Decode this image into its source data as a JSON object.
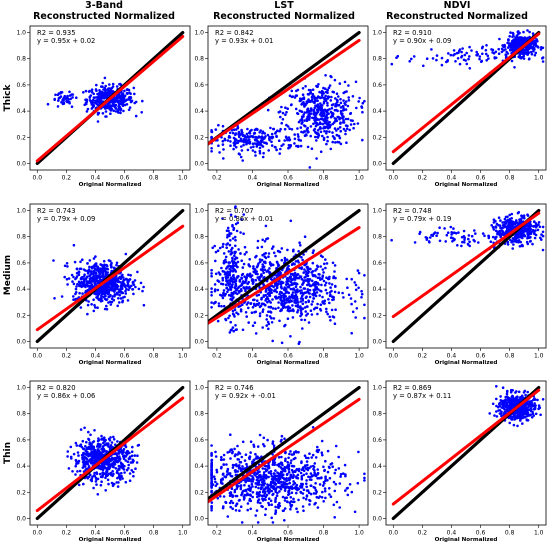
{
  "figure": {
    "col_titles": [
      {
        "line1": "3-Band",
        "line2": "Reconstructed Normalized"
      },
      {
        "line1": "LST",
        "line2": "Reconstructed Normalized"
      },
      {
        "line1": "NDVI",
        "line2": "Reconstructed Normalized"
      }
    ],
    "row_labels": [
      "Thick",
      "Medium",
      "Thin"
    ]
  },
  "colors": {
    "points": "#0000ff",
    "fit_line": "#ff0000",
    "identity_line": "#000000"
  },
  "chart_data": [
    {
      "type": "scatter",
      "row": "Thick",
      "col": "3-Band",
      "xlabel": "Original Normalized",
      "xlim": [
        -0.05,
        1.05
      ],
      "ylim": [
        -0.05,
        1.05
      ],
      "xticks": [
        0.0,
        0.2,
        0.4,
        0.6,
        0.8,
        1.0
      ],
      "yticks": [
        0.0,
        0.2,
        0.4,
        0.6,
        0.8,
        1.0
      ],
      "r2_text": "R2 = 0.935",
      "eq_text": "y = 0.95x + 0.02",
      "fit": {
        "slope": 0.95,
        "intercept": 0.02
      },
      "identity": true,
      "clouds": [
        {
          "cx": 0.5,
          "cy": 0.49,
          "sx": 0.08,
          "sy": 0.05,
          "n": 380
        },
        {
          "cx": 0.18,
          "cy": 0.48,
          "sx": 0.04,
          "sy": 0.03,
          "n": 40
        }
      ]
    },
    {
      "type": "scatter",
      "row": "Thick",
      "col": "LST",
      "xlabel": "Original Normalized",
      "xlim": [
        0.15,
        1.05
      ],
      "ylim": [
        -0.05,
        1.05
      ],
      "xticks": [
        0.2,
        0.4,
        0.6,
        0.8,
        1.0
      ],
      "yticks": [
        0.0,
        0.2,
        0.4,
        0.6,
        0.8,
        1.0
      ],
      "r2_text": "R2 = 0.842",
      "eq_text": "y = 0.93x + 0.01",
      "fit": {
        "slope": 0.93,
        "intercept": 0.01
      },
      "identity": true,
      "clouds": [
        {
          "cx": 0.78,
          "cy": 0.38,
          "sx": 0.1,
          "sy": 0.12,
          "n": 450
        },
        {
          "cx": 0.4,
          "cy": 0.18,
          "sx": 0.12,
          "sy": 0.05,
          "n": 220
        }
      ]
    },
    {
      "type": "scatter",
      "row": "Thick",
      "col": "NDVI",
      "xlabel": "Original Normalized",
      "xlim": [
        -0.05,
        1.05
      ],
      "ylim": [
        -0.05,
        1.05
      ],
      "xticks": [
        0.0,
        0.2,
        0.4,
        0.6,
        0.8,
        1.0
      ],
      "yticks": [
        0.0,
        0.2,
        0.4,
        0.6,
        0.8,
        1.0
      ],
      "r2_text": "R2 = 0.910",
      "eq_text": "y = 0.90x + 0.09",
      "fit": {
        "slope": 0.9,
        "intercept": 0.09
      },
      "identity": true,
      "clouds": [
        {
          "cx": 0.88,
          "cy": 0.9,
          "sx": 0.05,
          "sy": 0.04,
          "n": 380
        },
        {
          "cx": 0.5,
          "cy": 0.82,
          "sx": 0.2,
          "sy": 0.04,
          "n": 90
        }
      ]
    },
    {
      "type": "scatter",
      "row": "Medium",
      "col": "3-Band",
      "xlabel": "Original Normalized",
      "xlim": [
        -0.05,
        1.05
      ],
      "ylim": [
        -0.05,
        1.05
      ],
      "xticks": [
        0.0,
        0.2,
        0.4,
        0.6,
        0.8,
        1.0
      ],
      "yticks": [
        0.0,
        0.2,
        0.4,
        0.6,
        0.8,
        1.0
      ],
      "r2_text": "R2 = 0.743",
      "eq_text": "y = 0.79x + 0.09",
      "fit": {
        "slope": 0.79,
        "intercept": 0.09
      },
      "identity": true,
      "clouds": [
        {
          "cx": 0.45,
          "cy": 0.45,
          "sx": 0.1,
          "sy": 0.08,
          "n": 600
        }
      ]
    },
    {
      "type": "scatter",
      "row": "Medium",
      "col": "LST",
      "xlabel": "Original Normalized",
      "xlim": [
        0.15,
        1.05
      ],
      "ylim": [
        -0.05,
        1.05
      ],
      "xticks": [
        0.2,
        0.4,
        0.6,
        0.8,
        1.0
      ],
      "yticks": [
        0.0,
        0.2,
        0.4,
        0.6,
        0.8,
        1.0
      ],
      "r2_text": "R2 = 0.707",
      "eq_text": "y = 0.86x + 0.01",
      "fit": {
        "slope": 0.86,
        "intercept": 0.01
      },
      "identity": true,
      "clouds": [
        {
          "cx": 0.55,
          "cy": 0.42,
          "sx": 0.18,
          "sy": 0.14,
          "n": 900
        },
        {
          "cx": 0.28,
          "cy": 0.55,
          "sx": 0.03,
          "sy": 0.2,
          "n": 150
        }
      ]
    },
    {
      "type": "scatter",
      "row": "Medium",
      "col": "NDVI",
      "xlabel": "Original Normalized",
      "xlim": [
        -0.05,
        1.05
      ],
      "ylim": [
        -0.05,
        1.05
      ],
      "xticks": [
        0.0,
        0.2,
        0.4,
        0.6,
        0.8,
        1.0
      ],
      "yticks": [
        0.0,
        0.2,
        0.4,
        0.6,
        0.8,
        1.0
      ],
      "r2_text": "R2 = 0.748",
      "eq_text": "y = 0.79x + 0.19",
      "fit": {
        "slope": 0.79,
        "intercept": 0.19
      },
      "identity": true,
      "clouds": [
        {
          "cx": 0.85,
          "cy": 0.85,
          "sx": 0.07,
          "sy": 0.05,
          "n": 400
        },
        {
          "cx": 0.5,
          "cy": 0.8,
          "sx": 0.2,
          "sy": 0.04,
          "n": 80
        }
      ]
    },
    {
      "type": "scatter",
      "row": "Thin",
      "col": "3-Band",
      "xlabel": "Original Normalized",
      "xlim": [
        -0.05,
        1.05
      ],
      "ylim": [
        -0.05,
        1.05
      ],
      "xticks": [
        0.0,
        0.2,
        0.4,
        0.6,
        0.8,
        1.0
      ],
      "yticks": [
        0.0,
        0.2,
        0.4,
        0.6,
        0.8,
        1.0
      ],
      "r2_text": "R2 = 0.820",
      "eq_text": "y = 0.86x + 0.06",
      "fit": {
        "slope": 0.86,
        "intercept": 0.06
      },
      "identity": true,
      "clouds": [
        {
          "cx": 0.45,
          "cy": 0.45,
          "sx": 0.1,
          "sy": 0.08,
          "n": 600
        }
      ]
    },
    {
      "type": "scatter",
      "row": "Thin",
      "col": "LST",
      "xlabel": "Original Normalized",
      "xlim": [
        0.15,
        1.05
      ],
      "ylim": [
        -0.05,
        1.05
      ],
      "xticks": [
        0.2,
        0.4,
        0.6,
        0.8,
        1.0
      ],
      "yticks": [
        0.0,
        0.2,
        0.4,
        0.6,
        0.8,
        1.0
      ],
      "r2_text": "R2 = 0.746",
      "eq_text": "y = 0.92x + -0.01",
      "fit": {
        "slope": 0.92,
        "intercept": -0.01
      },
      "identity": true,
      "clouds": [
        {
          "cx": 0.5,
          "cy": 0.3,
          "sx": 0.2,
          "sy": 0.12,
          "n": 900
        }
      ]
    },
    {
      "type": "scatter",
      "row": "Thin",
      "col": "NDVI",
      "xlabel": "Original Normalized",
      "xlim": [
        -0.05,
        1.05
      ],
      "ylim": [
        -0.05,
        1.05
      ],
      "xticks": [
        0.0,
        0.2,
        0.4,
        0.6,
        0.8,
        1.0
      ],
      "yticks": [
        0.0,
        0.2,
        0.4,
        0.6,
        0.8,
        1.0
      ],
      "r2_text": "R2 = 0.869",
      "eq_text": "y = 0.87x + 0.11",
      "fit": {
        "slope": 0.87,
        "intercept": 0.11
      },
      "identity": true,
      "clouds": [
        {
          "cx": 0.85,
          "cy": 0.85,
          "sx": 0.06,
          "sy": 0.05,
          "n": 500
        }
      ]
    }
  ]
}
